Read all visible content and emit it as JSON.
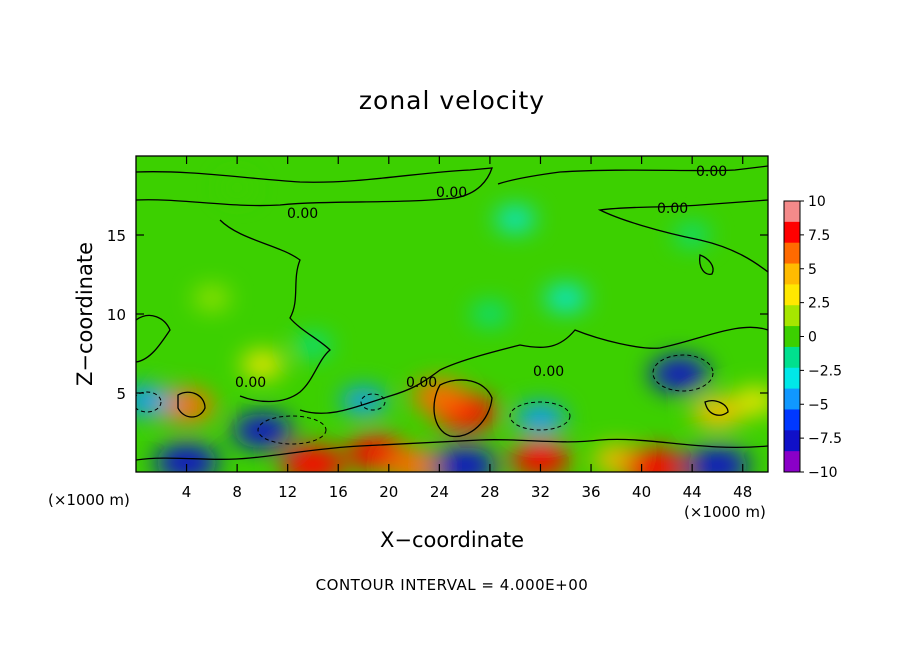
{
  "chart_data": {
    "type": "heatmap",
    "title": "zonal velocity",
    "xlabel": "X−coordinate",
    "ylabel": "Z−coordinate",
    "x_unit_label": "(×1000 m)",
    "x_ticks": [
      "4",
      "8",
      "12",
      "16",
      "20",
      "24",
      "28",
      "32",
      "36",
      "40",
      "44",
      "48"
    ],
    "y_ticks": [
      "5",
      "10",
      "15"
    ],
    "xlim": [
      0,
      50
    ],
    "ylim": [
      0,
      20
    ],
    "grid": false,
    "colorbar": {
      "min": -10,
      "max": 10,
      "tick_labels": [
        "10",
        "7.5",
        "5",
        "2.5",
        "0",
        "−2.5",
        "−5",
        "−7.5",
        "−10"
      ],
      "colors": [
        "#f48a8a",
        "#ff0000",
        "#ff6a00",
        "#ffbb00",
        "#ffe800",
        "#a6e600",
        "#3cd000",
        "#00e08e",
        "#00e8e8",
        "#1098ff",
        "#0038ff",
        "#1010c8",
        "#8a00c8"
      ]
    },
    "contour_label": "0.00",
    "contour_interval_text": "CONTOUR INTERVAL = 4.000E+00",
    "features": [
      {
        "x": 4,
        "z": 0.6,
        "value": -8
      },
      {
        "x": 4,
        "z": 4.2,
        "value": 6
      },
      {
        "x": 10,
        "z": 6.8,
        "value": 3
      },
      {
        "x": 0.8,
        "z": 4.5,
        "value": -5
      },
      {
        "x": 10,
        "z": 2.6,
        "value": -7
      },
      {
        "x": 14,
        "z": 0.5,
        "value": 8
      },
      {
        "x": 19,
        "z": 1.2,
        "value": 7
      },
      {
        "x": 22,
        "z": 0.4,
        "value": 6
      },
      {
        "x": 18,
        "z": 4.5,
        "value": -4
      },
      {
        "x": 26,
        "z": 3.8,
        "value": 8
      },
      {
        "x": 24,
        "z": 4.8,
        "value": 6
      },
      {
        "x": 26,
        "z": 0.4,
        "value": -8
      },
      {
        "x": 32,
        "z": 3.4,
        "value": -5
      },
      {
        "x": 32,
        "z": 0.8,
        "value": 7
      },
      {
        "x": 38,
        "z": 0.8,
        "value": 4
      },
      {
        "x": 43,
        "z": 6.2,
        "value": -7
      },
      {
        "x": 41,
        "z": 0.3,
        "value": 8
      },
      {
        "x": 46,
        "z": 3.8,
        "value": 5
      },
      {
        "x": 46,
        "z": 0.4,
        "value": -8
      },
      {
        "x": 49,
        "z": 4.5,
        "value": 3
      },
      {
        "x": 14,
        "z": 8,
        "value": -2
      },
      {
        "x": 28,
        "z": 10,
        "value": -2
      },
      {
        "x": 34,
        "z": 11,
        "value": -3
      },
      {
        "x": 30,
        "z": 16,
        "value": -2.5
      },
      {
        "x": 8,
        "z": 18,
        "value": 0.5
      },
      {
        "x": 44,
        "z": 15,
        "value": -1.5
      },
      {
        "x": 6,
        "z": 11,
        "value": 1.5
      }
    ]
  }
}
